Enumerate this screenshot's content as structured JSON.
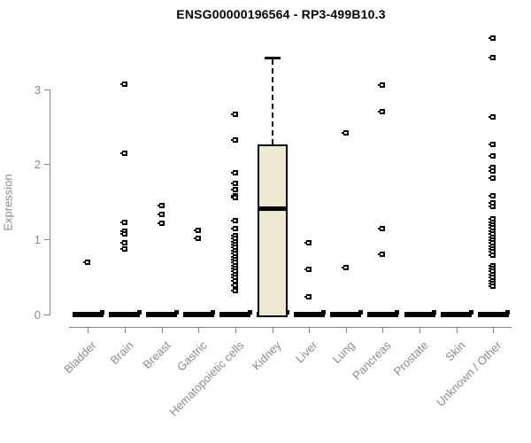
{
  "title": "ENSG00000196564 - RP3-499B10.3",
  "y_axis": {
    "label": "Expression",
    "ticks": [
      "0",
      "1",
      "2",
      "3"
    ]
  },
  "colors": {
    "box_fill": "#EDE8D0",
    "box_border": "#000000",
    "point": "#000000",
    "axis": "#878787",
    "tick_text": "#8a8a8a",
    "title_text": "#000000"
  },
  "chart_data": {
    "type": "boxplot-scatter",
    "title": "ENSG00000196564 - RP3-499B10.3",
    "ylabel": "Expression",
    "ylim": [
      0,
      3.8
    ],
    "yticks": [
      0,
      1,
      2,
      3
    ],
    "grid": false,
    "legend": false,
    "categories": [
      "Bladder",
      "Brain",
      "Breast",
      "Gastric",
      "Hematopoietic cells",
      "Kidney",
      "Liver",
      "Lung",
      "Pancreas",
      "Prostate",
      "Skin",
      "Unknown / Other"
    ],
    "zero_bar_all_categories": true,
    "points": {
      "Bladder": [
        0.69
      ],
      "Brain": [
        3.07,
        2.15,
        1.22,
        1.11,
        1.07,
        0.95,
        0.87
      ],
      "Breast": [
        1.45,
        1.33,
        1.21
      ],
      "Gastric": [
        1.12,
        1.01
      ],
      "Hematopoietic cells": [
        2.67,
        2.32,
        1.89,
        1.74,
        1.66,
        1.58,
        1.55,
        1.25,
        1.14,
        1.05,
        1.01,
        0.97,
        0.93,
        0.89,
        0.85,
        0.81,
        0.77,
        0.73,
        0.69,
        0.65,
        0.61,
        0.57,
        0.53,
        0.49,
        0.45,
        0.39,
        0.31
      ],
      "Kidney": [],
      "Liver": [
        0.95,
        0.6,
        0.23
      ],
      "Lung": [
        2.42,
        0.62
      ],
      "Pancreas": [
        3.05,
        2.7,
        1.14,
        0.8
      ],
      "Prostate": [],
      "Skin": [],
      "Unknown / Other": [
        3.68,
        3.42,
        2.63,
        2.26,
        2.11,
        1.96,
        1.91,
        1.82,
        1.58,
        1.49,
        1.44,
        1.27,
        1.23,
        1.19,
        1.15,
        1.11,
        1.07,
        1.03,
        0.99,
        0.95,
        0.91,
        0.87,
        0.83,
        0.79,
        0.65,
        0.61,
        0.57,
        0.53,
        0.49,
        0.45,
        0.41,
        0.37
      ]
    },
    "box": {
      "category": "Kidney",
      "q1": 0,
      "median": 1.41,
      "q3": 2.26,
      "whisker_low": 0,
      "whisker_high": 3.42
    }
  }
}
